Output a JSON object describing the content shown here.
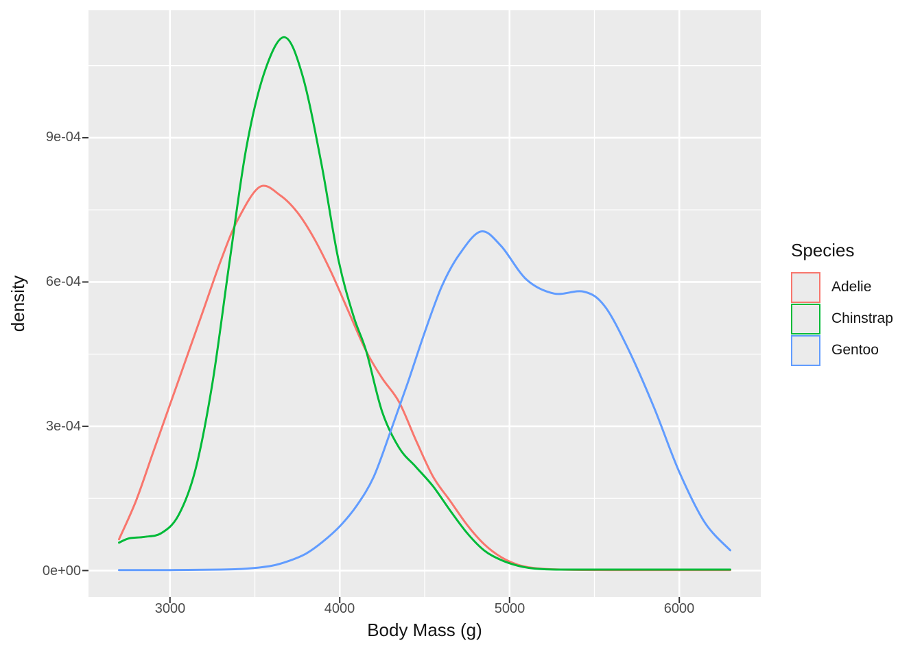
{
  "figure": {
    "x_axis_label": "Body Mass (g)",
    "y_axis_label": "density"
  },
  "axes": {
    "x": {
      "tick_labels": [
        "3000",
        "4000",
        "5000",
        "6000"
      ]
    },
    "y": {
      "tick_labels": [
        "0e+00",
        "3e-04",
        "6e-04",
        "9e-04"
      ]
    }
  },
  "legend": {
    "title": "Species",
    "entries": [
      {
        "label": "Adelie",
        "color": "#F8766D"
      },
      {
        "label": "Chinstrap",
        "color": "#00BA38"
      },
      {
        "label": "Gentoo",
        "color": "#619CFF"
      }
    ]
  },
  "style": {
    "panel_background": "#EBEBEB",
    "gridline_color": "#FFFFFF",
    "tick_mark_color": "#333333",
    "axis_text_color": "#4D4D4D",
    "title_text_color": "#141414"
  },
  "chart_data": {
    "type": "line",
    "variant": "density",
    "title": "",
    "xlabel": "Body Mass (g)",
    "ylabel": "density",
    "xlim": [
      2520,
      6480
    ],
    "ylim": [
      -5.5e-05,
      0.001165
    ],
    "x_major_ticks": [
      3000,
      4000,
      5000,
      6000
    ],
    "x_minor_gridlines": [
      3500,
      4500,
      5500
    ],
    "y_major_ticks": [
      0,
      0.0003,
      0.0006,
      0.0009
    ],
    "y_minor_gridlines": [
      0.00015,
      0.00045,
      0.00075,
      0.00105
    ],
    "x_tick_labels": [
      "3000",
      "4000",
      "5000",
      "6000"
    ],
    "y_tick_labels": [
      "0e+00",
      "3e-04",
      "6e-04",
      "9e-04"
    ],
    "grid": true,
    "legend_position": "right",
    "legend_title": "Species",
    "series": [
      {
        "name": "Adelie",
        "color": "#F8766D",
        "points": [
          [
            2700,
            6.5e-05
          ],
          [
            2800,
            0.000145
          ],
          [
            2900,
            0.000245
          ],
          [
            3000,
            0.000345
          ],
          [
            3100,
            0.000445
          ],
          [
            3200,
            0.000545
          ],
          [
            3300,
            0.000645
          ],
          [
            3400,
            0.00073
          ],
          [
            3530,
            0.000798
          ],
          [
            3650,
            0.00078
          ],
          [
            3750,
            0.000745
          ],
          [
            3850,
            0.00069
          ],
          [
            3950,
            0.00062
          ],
          [
            4050,
            0.00054
          ],
          [
            4156,
            0.000456
          ],
          [
            4250,
            0.0004
          ],
          [
            4350,
            0.00035
          ],
          [
            4450,
            0.00027
          ],
          [
            4550,
            0.000195
          ],
          [
            4650,
            0.000145
          ],
          [
            4750,
            9.5e-05
          ],
          [
            4850,
            5.5e-05
          ],
          [
            4950,
            2.8e-05
          ],
          [
            5050,
            1.2e-05
          ],
          [
            5150,
            5e-06
          ],
          [
            5300,
            2e-06
          ],
          [
            5600,
            1e-06
          ],
          [
            6000,
            1e-06
          ],
          [
            6300,
            1e-06
          ]
        ]
      },
      {
        "name": "Chinstrap",
        "color": "#00BA38",
        "points": [
          [
            2700,
            5.8e-05
          ],
          [
            2760,
            6.7e-05
          ],
          [
            2850,
            7e-05
          ],
          [
            2950,
            7.8e-05
          ],
          [
            3050,
            0.000115
          ],
          [
            3150,
            0.00021
          ],
          [
            3250,
            0.00039
          ],
          [
            3350,
            0.00064
          ],
          [
            3450,
            0.00088
          ],
          [
            3560,
            0.00104
          ],
          [
            3675,
            0.001109
          ],
          [
            3780,
            0.00103
          ],
          [
            3890,
            0.00085
          ],
          [
            3990,
            0.00065
          ],
          [
            4080,
            0.00053
          ],
          [
            4156,
            0.000456
          ],
          [
            4250,
            0.00033
          ],
          [
            4350,
            0.000255
          ],
          [
            4450,
            0.000215
          ],
          [
            4550,
            0.000175
          ],
          [
            4650,
            0.000125
          ],
          [
            4750,
            7.8e-05
          ],
          [
            4850,
            4.2e-05
          ],
          [
            4950,
            2.2e-05
          ],
          [
            5050,
            1e-05
          ],
          [
            5150,
            4e-06
          ],
          [
            5300,
            2e-06
          ],
          [
            5700,
            2e-06
          ],
          [
            6300,
            2e-06
          ]
        ]
      },
      {
        "name": "Gentoo",
        "color": "#619CFF",
        "points": [
          [
            2700,
            1e-06
          ],
          [
            3000,
            1e-06
          ],
          [
            3300,
            2e-06
          ],
          [
            3450,
            4e-06
          ],
          [
            3600,
            1e-05
          ],
          [
            3700,
            2e-05
          ],
          [
            3800,
            3.5e-05
          ],
          [
            3900,
            6e-05
          ],
          [
            4000,
            9.2e-05
          ],
          [
            4100,
            0.000135
          ],
          [
            4200,
            0.000195
          ],
          [
            4300,
            0.00029
          ],
          [
            4400,
            0.00039
          ],
          [
            4500,
            0.000495
          ],
          [
            4600,
            0.00059
          ],
          [
            4700,
            0.000655
          ],
          [
            4830,
            0.000705
          ],
          [
            4950,
            0.000675
          ],
          [
            5100,
            0.000605
          ],
          [
            5263,
            0.000576
          ],
          [
            5437,
            0.00058
          ],
          [
            5560,
            0.00055
          ],
          [
            5700,
            0.00046
          ],
          [
            5850,
            0.00034
          ],
          [
            6000,
            0.000205
          ],
          [
            6150,
            0.0001
          ],
          [
            6300,
            4.2e-05
          ]
        ]
      }
    ]
  }
}
